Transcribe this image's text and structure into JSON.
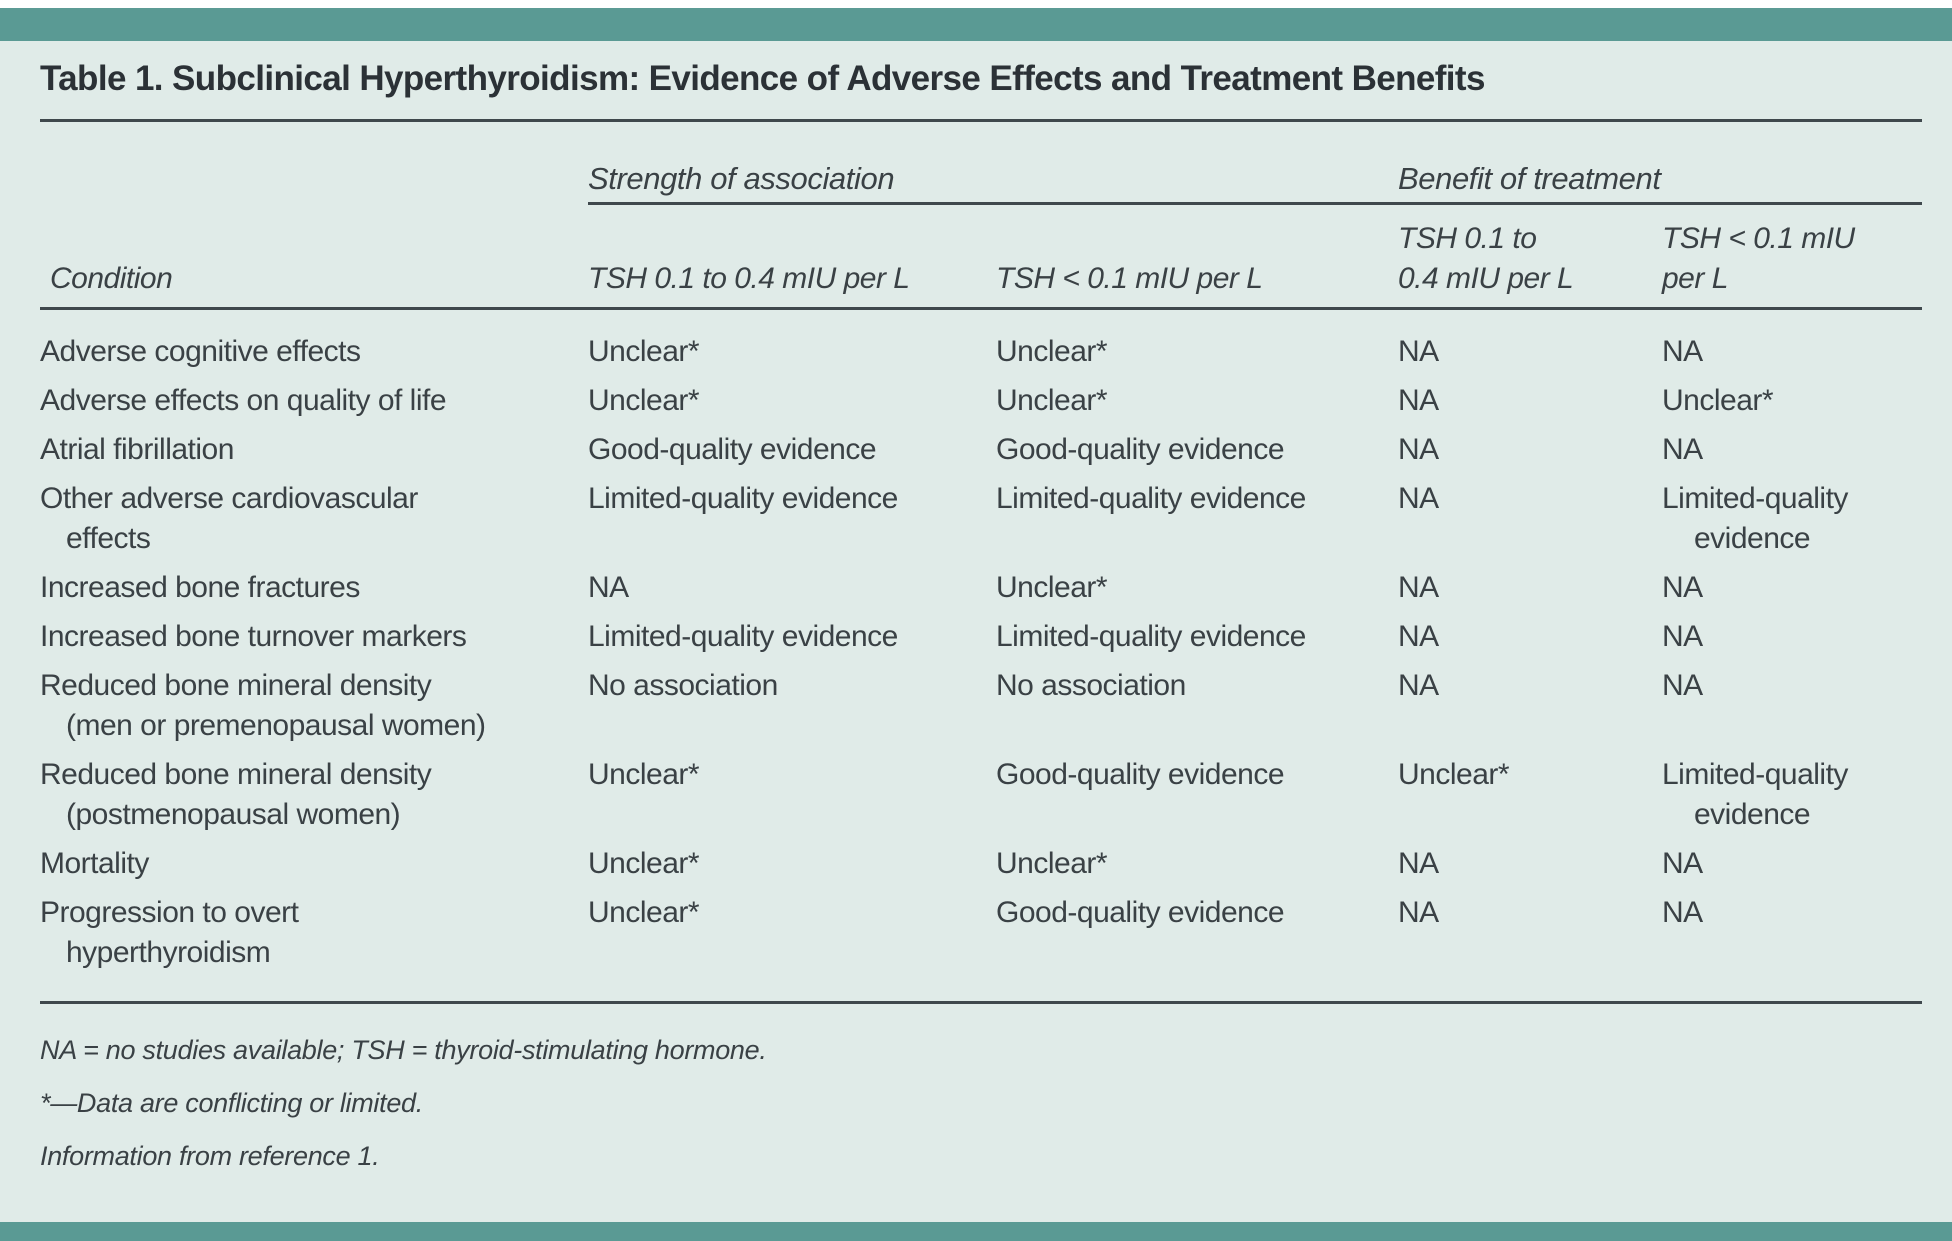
{
  "colors": {
    "accent_teal": "#5a9a94",
    "background_mint": "#e0ebe8",
    "text_dark": "#2b3136"
  },
  "title": "Table 1. Subclinical Hyperthyroidism: Evidence of Adverse Effects and Treatment Benefits",
  "group_headers": {
    "strength": "Strength of association",
    "benefit": "Benefit of treatment"
  },
  "columns": {
    "condition": "Condition",
    "strength_tsh_01_04": "TSH 0.1 to 0.4 mIU per L",
    "strength_tsh_lt_01": "TSH < 0.1 mIU per L",
    "benefit_tsh_01_04": "TSH 0.1 to\n0.4 mIU per L",
    "benefit_tsh_lt_01": "TSH < 0.1 mIU\nper L"
  },
  "rows": [
    {
      "condition": "Adverse cognitive effects",
      "values": [
        "Unclear*",
        "Unclear*",
        "NA",
        "NA"
      ]
    },
    {
      "condition": "Adverse effects on quality of life",
      "values": [
        "Unclear*",
        "Unclear*",
        "NA",
        "Unclear*"
      ]
    },
    {
      "condition": "Atrial fibrillation",
      "values": [
        "Good-quality evidence",
        "Good-quality evidence",
        "NA",
        "NA"
      ]
    },
    {
      "condition": "Other adverse cardiovascular\neffects",
      "values": [
        "Limited-quality evidence",
        "Limited-quality evidence",
        "NA",
        "Limited-quality\nevidence"
      ]
    },
    {
      "condition": "Increased bone fractures",
      "values": [
        "NA",
        "Unclear*",
        "NA",
        "NA"
      ]
    },
    {
      "condition": "Increased bone turnover markers",
      "values": [
        "Limited-quality evidence",
        "Limited-quality evidence",
        "NA",
        "NA"
      ]
    },
    {
      "condition": "Reduced bone mineral density\n(men or premenopausal women)",
      "values": [
        "No association",
        "No association",
        "NA",
        "NA"
      ]
    },
    {
      "condition": "Reduced bone mineral density\n(postmenopausal women)",
      "values": [
        "Unclear*",
        "Good-quality evidence",
        "Unclear*",
        "Limited-quality\nevidence"
      ]
    },
    {
      "condition": "Mortality",
      "values": [
        "Unclear*",
        "Unclear*",
        "NA",
        "NA"
      ]
    },
    {
      "condition": "Progression to overt\nhyperthyroidism",
      "values": [
        "Unclear*",
        "Good-quality evidence",
        "NA",
        "NA"
      ]
    }
  ],
  "footnotes": [
    "NA = no studies available; TSH = thyroid-stimulating hormone.",
    "*—Data are conflicting or limited.",
    "Information from reference 1."
  ]
}
